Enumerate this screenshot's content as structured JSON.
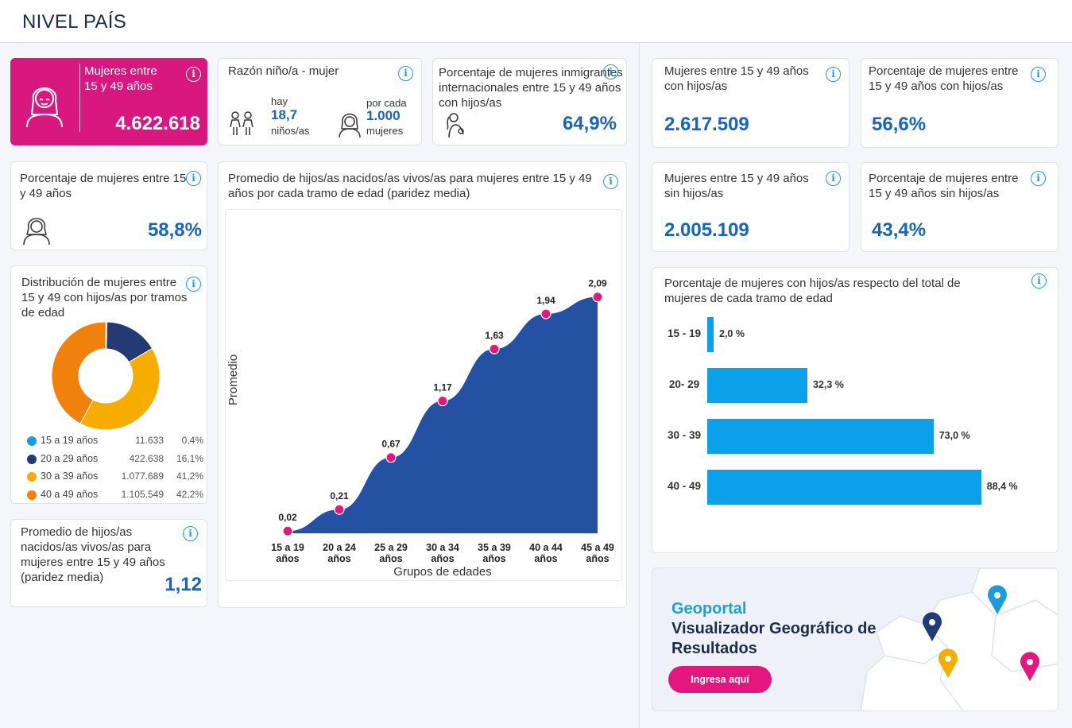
{
  "header": {
    "title": "NIVEL PAÍS"
  },
  "kpi_women": {
    "title": "Mujeres entre 15 y 49 años",
    "value": "4.622.618",
    "color": "#d8177f"
  },
  "ratio": {
    "title": "Razón niño/a - mujer",
    "hay": "hay",
    "kids_value": "18,7",
    "kids_label": "niños/as",
    "por_cada": "por cada",
    "women_value": "1.000",
    "women_label": "mujeres"
  },
  "immigrants": {
    "title": "Porcentaje de mujeres inmigrantes internacionales entre 15 y 49 años con hijos/as",
    "value": "64,9%"
  },
  "pct_women": {
    "title": "Porcentaje de mujeres entre 15 y 49 años",
    "value": "58,8%"
  },
  "distribution": {
    "title": "Distribución de mujeres entre 15 y 49 con hijos/as por tramos de edad",
    "rows": [
      {
        "label": "15 a 19 años",
        "count": "11.633",
        "pct": "0,4%",
        "color": "#1e9be0"
      },
      {
        "label": "20 a 29 años",
        "count": "422.638",
        "pct": "16,1%",
        "color": "#233a72"
      },
      {
        "label": "30 a 39 años",
        "count": "1.077.689",
        "pct": "41,2%",
        "color": "#f6ad00"
      },
      {
        "label": "40 a 49 años",
        "count": "1.105.549",
        "pct": "42,2%",
        "color": "#f0820c"
      }
    ]
  },
  "avg_children": {
    "title": "Promedio de hijos/as nacidos/as vivos/as para mujeres entre 15 y 49 años (paridez media)",
    "value": "1,12"
  },
  "parity_chart": {
    "title": "Promedio de hijos/as nacidos/as vivos/as para mujeres entre 15 y 49 años por cada tramo de edad (paridez media)"
  },
  "with_children": {
    "title": "Mujeres entre 15 y 49 años con hijos/as",
    "value": "2.617.509"
  },
  "pct_with_children": {
    "title": "Porcentaje de mujeres entre 15 y 49 años con hijos/as",
    "value": "56,6%"
  },
  "without_children": {
    "title": "Mujeres entre 15 y 49 años sin hijos/as",
    "value": "2.005.109"
  },
  "pct_without_children": {
    "title": "Porcentaje de mujeres entre 15 y 49 años sin hijos/as",
    "value": "43,4%"
  },
  "pct_by_age": {
    "title": "Porcentaje de mujeres con hijos/as respecto del total de mujeres de cada tramo de edad"
  },
  "geoportal": {
    "title": "Geoportal",
    "subtitle": "Visualizador Geográfico de Resultados",
    "button": "Ingresa aquí"
  },
  "chart_data": [
    {
      "type": "pie",
      "categories": [
        "15 a 19 años",
        "20 a 29 años",
        "30 a 39 años",
        "40 a 49 años"
      ],
      "values": [
        0.4,
        16.1,
        41.2,
        42.2
      ],
      "colors": [
        "#1e9be0",
        "#233a72",
        "#f6ad00",
        "#f0820c"
      ]
    },
    {
      "type": "area",
      "title": "Promedio de hijos/as nacidos/as vivos/as para mujeres entre 15 y 49 años por cada tramo de edad (paridez media)",
      "xlabel": "Grupos de edades",
      "ylabel": "Promedio",
      "categories": [
        "15 a 19 años",
        "20 a 24 años",
        "25 a 29 años",
        "30 a 34 años",
        "35 a 39 años",
        "40 a 44 años",
        "45 a 49 años"
      ],
      "values": [
        0.02,
        0.21,
        0.67,
        1.17,
        1.63,
        1.94,
        2.09
      ],
      "labels": [
        "0,02",
        "0,21",
        "0,67",
        "1,17",
        "1,63",
        "1,94",
        "2,09"
      ],
      "ylim": [
        0,
        2.2
      ],
      "fill": "#2451a1",
      "marker_color": "#e4177e"
    },
    {
      "type": "bar",
      "orientation": "horizontal",
      "title": "Porcentaje de mujeres con hijos/as respecto del total de mujeres de cada tramo de edad",
      "categories": [
        "15 - 19",
        "20- 29",
        "30 - 39",
        "40 - 49"
      ],
      "values": [
        2.0,
        32.3,
        73.0,
        88.4
      ],
      "labels": [
        "2,0 %",
        "32,3 %",
        "73,0 %",
        "88,4 %"
      ],
      "color": "#0ba0e8"
    }
  ]
}
